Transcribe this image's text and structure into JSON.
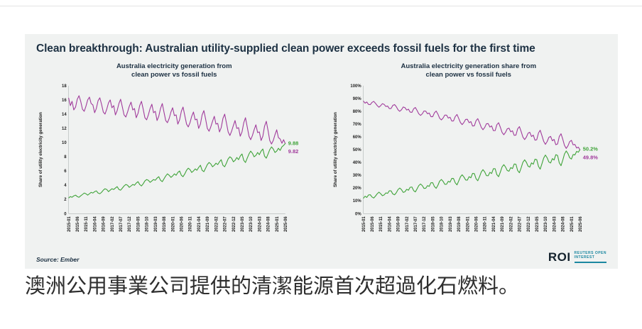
{
  "page": {
    "caption": "澳洲公用事業公司提供的清潔能源首次超過化石燃料。"
  },
  "card": {
    "headline": "Clean breakthrough: Australian utility-supplied clean power exceeds fossil fuels for the first time",
    "source": "Source: Ember",
    "logo": {
      "roi": "ROI",
      "line1": "REUTERS OPEN",
      "line2": "INTEREST"
    }
  },
  "colors": {
    "clean": "#3ea338",
    "fossil": "#a03a9b",
    "title": "#1d3143",
    "teal": "#1b87a0"
  },
  "chart_data": [
    {
      "type": "line",
      "title": "Australia electricity generation from\nclean power vs fossil fuels",
      "xlabel": "",
      "ylabel": "Share of utility electricity generation",
      "ylim": [
        0,
        18
      ],
      "grid": false,
      "legend": "none (end-of-line value labels)",
      "ytick_values": [
        0,
        2,
        4,
        6,
        8,
        10,
        12,
        14,
        16,
        18
      ],
      "ytick_labels": [
        "0",
        "2",
        "4",
        "6",
        "8",
        "10",
        "12",
        "14",
        "16",
        "18"
      ],
      "x_tick_labels": [
        "2015-01",
        "2015-06",
        "2015-11",
        "2016-04",
        "2016-09",
        "2017-02",
        "2017-07",
        "2017-12",
        "2018-05",
        "2018-10",
        "2019-03",
        "2019-08",
        "2020-01",
        "2020-06",
        "2020-11",
        "2021-04",
        "2021-09",
        "2022-02",
        "2022-07",
        "2022-12",
        "2023-05",
        "2023-10",
        "2024-03",
        "2024-08",
        "2025-01",
        "2025-06"
      ],
      "series": [
        {
          "name": "fossil fuels",
          "color_key": "fossil",
          "end_label": "9.82",
          "values": [
            16.3,
            15.2,
            15.8,
            14.6,
            15.0,
            16.1,
            16.6,
            15.8,
            14.7,
            14.4,
            15.1,
            16.0,
            16.4,
            15.5,
            15.3,
            14.2,
            14.8,
            15.9,
            16.3,
            15.4,
            14.3,
            14.0,
            14.7,
            15.6,
            16.0,
            14.9,
            15.2,
            13.9,
            14.5,
            15.5,
            16.1,
            15.0,
            13.9,
            13.6,
            14.3,
            15.1,
            15.7,
            14.6,
            14.8,
            13.5,
            14.1,
            15.2,
            15.8,
            14.7,
            13.5,
            13.2,
            13.9,
            14.8,
            15.4,
            14.2,
            14.4,
            13.1,
            13.7,
            14.8,
            15.5,
            14.3,
            13.1,
            12.8,
            13.4,
            14.3,
            14.9,
            13.8,
            13.9,
            12.6,
            13.2,
            14.4,
            15.0,
            13.8,
            12.6,
            12.2,
            12.8,
            13.7,
            14.3,
            13.2,
            13.3,
            12.0,
            12.6,
            13.9,
            14.5,
            13.3,
            12.0,
            11.6,
            12.2,
            13.0,
            13.7,
            12.6,
            12.7,
            11.5,
            12.1,
            13.4,
            14.0,
            12.8,
            11.5,
            11.0,
            11.6,
            12.4,
            13.1,
            12.0,
            12.1,
            10.9,
            11.5,
            12.8,
            13.5,
            12.2,
            10.9,
            10.4,
            11.0,
            11.8,
            12.5,
            11.4,
            11.5,
            10.3,
            10.9,
            12.3,
            13.0,
            11.7,
            10.3,
            9.8,
            10.3,
            11.1,
            11.8,
            10.7,
            10.5,
            9.9,
            10.4,
            9.82
          ]
        },
        {
          "name": "clean power",
          "color_key": "clean",
          "end_label": "9.88",
          "values": [
            2.2,
            2.4,
            2.3,
            2.5,
            2.6,
            2.4,
            2.3,
            2.5,
            2.7,
            2.9,
            2.8,
            2.6,
            2.8,
            3.0,
            2.9,
            3.1,
            3.2,
            2.9,
            2.8,
            3.0,
            3.3,
            3.5,
            3.4,
            3.1,
            3.3,
            3.5,
            3.4,
            3.6,
            3.8,
            3.4,
            3.3,
            3.6,
            3.9,
            4.1,
            4.0,
            3.7,
            3.9,
            4.1,
            4.0,
            4.3,
            4.5,
            4.1,
            3.9,
            4.2,
            4.6,
            4.8,
            4.7,
            4.4,
            4.6,
            4.8,
            4.7,
            5.0,
            5.2,
            4.7,
            4.5,
            4.9,
            5.3,
            5.6,
            5.4,
            5.1,
            5.3,
            5.6,
            5.4,
            5.8,
            6.0,
            5.4,
            5.2,
            5.6,
            6.1,
            6.4,
            6.2,
            5.8,
            6.0,
            6.3,
            6.1,
            6.5,
            6.8,
            6.1,
            5.9,
            6.4,
            6.9,
            7.2,
            7.0,
            6.6,
            6.8,
            7.1,
            6.9,
            7.3,
            7.6,
            6.8,
            6.6,
            7.1,
            7.7,
            8.0,
            7.8,
            7.3,
            7.5,
            7.9,
            7.6,
            8.1,
            8.4,
            7.5,
            7.2,
            7.8,
            8.4,
            8.8,
            8.5,
            8.0,
            8.2,
            8.6,
            8.3,
            8.8,
            9.1,
            8.1,
            7.8,
            8.4,
            9.0,
            9.4,
            9.1,
            8.6,
            8.8,
            9.2,
            8.9,
            9.4,
            9.6,
            9.88
          ]
        }
      ]
    },
    {
      "type": "line",
      "title": "Australia electricity generation share from\nclean power vs fossil fuels",
      "xlabel": "",
      "ylabel": "Share of utility electricity generation",
      "ylim": [
        0,
        100
      ],
      "grid": false,
      "legend": "none (end-of-line value labels)",
      "ytick_values": [
        0,
        10,
        20,
        30,
        40,
        50,
        60,
        70,
        80,
        90,
        100
      ],
      "ytick_labels": [
        "0%",
        "10%",
        "20%",
        "30%",
        "40%",
        "50%",
        "60%",
        "70%",
        "80%",
        "90%",
        "100%"
      ],
      "x_tick_labels": [
        "2015-01",
        "2015-06",
        "2015-11",
        "2016-04",
        "2016-09",
        "2017-02",
        "2017-07",
        "2017-12",
        "2018-05",
        "2018-10",
        "2019-03",
        "2019-08",
        "2020-01",
        "2020-06",
        "2020-11",
        "2021-04",
        "2021-09",
        "2022-02",
        "2022-07",
        "2022-12",
        "2023-05",
        "2023-10",
        "2024-03",
        "2024-08",
        "2025-01",
        "2025-06"
      ],
      "series": [
        {
          "name": "fossil fuels",
          "color_key": "fossil",
          "end_label": "49.8%",
          "values": [
            88.1,
            86.4,
            87.3,
            85.4,
            85.2,
            87.0,
            87.8,
            86.3,
            84.5,
            83.2,
            84.4,
            86.0,
            85.4,
            83.8,
            84.1,
            82.1,
            82.2,
            84.6,
            85.3,
            83.7,
            81.2,
            80.0,
            81.2,
            83.4,
            82.9,
            81.0,
            81.7,
            79.4,
            79.2,
            82.0,
            83.0,
            80.6,
            78.1,
            76.8,
            78.1,
            80.3,
            80.1,
            78.1,
            78.7,
            75.8,
            75.8,
            78.8,
            80.2,
            77.8,
            74.6,
            73.3,
            74.7,
            77.1,
            77.0,
            74.7,
            75.4,
            72.4,
            72.5,
            75.9,
            77.5,
            74.5,
            71.2,
            69.6,
            71.3,
            73.7,
            73.8,
            71.1,
            72.0,
            68.5,
            68.7,
            72.7,
            74.3,
            71.1,
            67.4,
            65.6,
            67.4,
            70.3,
            70.4,
            67.7,
            68.6,
            64.9,
            64.9,
            69.5,
            71.1,
            67.5,
            63.5,
            61.7,
            63.5,
            66.3,
            66.8,
            64.0,
            64.8,
            61.2,
            61.4,
            66.3,
            68.0,
            64.3,
            59.9,
            57.9,
            59.8,
            62.9,
            63.6,
            60.3,
            61.4,
            57.4,
            57.8,
            63.1,
            65.2,
            61.0,
            56.5,
            54.2,
            56.4,
            59.6,
            60.4,
            57.0,
            58.1,
            53.9,
            54.5,
            60.3,
            62.5,
            58.2,
            53.4,
            51.0,
            53.1,
            56.3,
            57.3,
            53.8,
            54.1,
            51.3,
            52.0,
            49.8
          ]
        },
        {
          "name": "clean power",
          "color_key": "clean",
          "end_label": "50.2%",
          "values": [
            11.9,
            13.6,
            12.7,
            14.6,
            14.8,
            13.0,
            12.2,
            13.7,
            15.5,
            16.8,
            15.6,
            14.0,
            14.6,
            16.2,
            15.9,
            17.9,
            17.8,
            15.4,
            14.7,
            16.3,
            18.8,
            20.0,
            18.8,
            16.6,
            17.1,
            19.0,
            18.3,
            20.6,
            20.8,
            18.0,
            17.0,
            19.4,
            21.9,
            23.2,
            21.9,
            19.7,
            19.9,
            21.9,
            21.3,
            24.2,
            24.2,
            21.2,
            19.8,
            22.2,
            25.4,
            26.7,
            25.3,
            22.9,
            23.0,
            25.3,
            24.6,
            27.6,
            27.5,
            24.1,
            22.5,
            25.5,
            28.8,
            30.4,
            28.7,
            26.3,
            26.2,
            28.9,
            28.0,
            31.5,
            31.3,
            27.3,
            25.7,
            28.9,
            32.6,
            34.4,
            32.6,
            29.7,
            29.6,
            32.3,
            31.4,
            35.1,
            35.1,
            30.5,
            28.9,
            32.5,
            36.5,
            38.3,
            36.5,
            33.7,
            33.2,
            36.0,
            35.2,
            38.8,
            38.6,
            33.7,
            32.0,
            35.7,
            40.1,
            42.1,
            40.2,
            37.1,
            36.4,
            39.7,
            38.6,
            42.6,
            42.2,
            36.9,
            34.8,
            39.0,
            43.5,
            45.8,
            43.6,
            40.4,
            39.6,
            43.0,
            41.9,
            46.1,
            45.5,
            39.7,
            37.5,
            41.8,
            46.6,
            49.0,
            46.9,
            43.7,
            42.7,
            46.2,
            45.9,
            48.7,
            48.0,
            50.2
          ]
        }
      ]
    }
  ]
}
